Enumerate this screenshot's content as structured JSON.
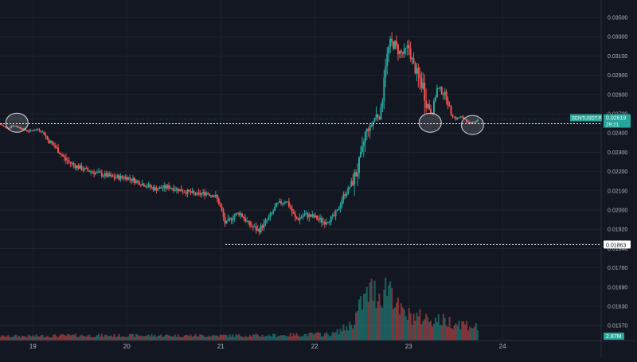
{
  "chart_data": {
    "type": "candlestick",
    "symbol": "SENTUSDT.P",
    "price_axis_ticks": [
      "0.03500",
      "0.03300",
      "0.03100",
      "0.02900",
      "0.02800",
      "0.02700",
      "0.02400",
      "0.02300",
      "0.02200",
      "0.02100",
      "0.02000",
      "0.01920",
      "0.01848",
      "0.01760",
      "0.01690",
      "0.01630",
      "0.01570"
    ],
    "x_ticks": [
      {
        "label": "19",
        "x": 19
      },
      {
        "label": "20",
        "x": 20
      },
      {
        "label": "21",
        "x": 21
      },
      {
        "label": "22",
        "x": 22
      },
      {
        "label": "23",
        "x": 23
      },
      {
        "label": "24",
        "x": 24
      }
    ],
    "x_range": [
      18.65,
      25.05
    ],
    "last_price": {
      "symbol": "SENTUSDT.P",
      "price": "0.02619",
      "countdown": "29:21",
      "value": 0.02619,
      "color": "#26a69a"
    },
    "levels": [
      {
        "label": "0.02545",
        "value": 0.02545,
        "style": "dotted",
        "from_x": 18.65
      },
      {
        "label": "0.01863",
        "value": 0.01863,
        "style": "dotted",
        "from_x": 21.05
      }
    ],
    "volume_badge": {
      "label": "2.87M"
    },
    "highlight_circles": [
      {
        "x": 18.83,
        "y": 0.0256
      },
      {
        "x": 23.23,
        "y": 0.0256
      },
      {
        "x": 23.68,
        "y": 0.02525
      }
    ],
    "price_path": [
      [
        18.65,
        0.0254
      ],
      [
        18.72,
        0.0247
      ],
      [
        18.78,
        0.0252
      ],
      [
        18.85,
        0.0249
      ],
      [
        18.95,
        0.0243
      ],
      [
        19.05,
        0.0246
      ],
      [
        19.1,
        0.0242
      ],
      [
        19.15,
        0.0237
      ],
      [
        19.25,
        0.0232
      ],
      [
        19.35,
        0.0226
      ],
      [
        19.45,
        0.0223
      ],
      [
        19.55,
        0.0221
      ],
      [
        19.7,
        0.0219
      ],
      [
        19.85,
        0.0217
      ],
      [
        20.0,
        0.0217
      ],
      [
        20.1,
        0.0215
      ],
      [
        20.2,
        0.0213
      ],
      [
        20.3,
        0.0211
      ],
      [
        20.45,
        0.0212
      ],
      [
        20.6,
        0.021
      ],
      [
        20.75,
        0.0208
      ],
      [
        20.85,
        0.0209
      ],
      [
        20.95,
        0.0207
      ],
      [
        21.0,
        0.0201
      ],
      [
        21.05,
        0.0194
      ],
      [
        21.12,
        0.0197
      ],
      [
        21.2,
        0.0199
      ],
      [
        21.3,
        0.0194
      ],
      [
        21.4,
        0.01915
      ],
      [
        21.5,
        0.0196
      ],
      [
        21.55,
        0.0199
      ],
      [
        21.6,
        0.0203
      ],
      [
        21.7,
        0.0205
      ],
      [
        21.75,
        0.02
      ],
      [
        21.8,
        0.0196
      ],
      [
        21.9,
        0.0198
      ],
      [
        22.0,
        0.0197
      ],
      [
        22.05,
        0.0196
      ],
      [
        22.1,
        0.0195
      ],
      [
        22.2,
        0.0197
      ],
      [
        22.25,
        0.02
      ],
      [
        22.3,
        0.0207
      ],
      [
        22.35,
        0.021
      ],
      [
        22.4,
        0.0215
      ],
      [
        22.45,
        0.022
      ],
      [
        22.5,
        0.0228
      ],
      [
        22.55,
        0.0244
      ],
      [
        22.6,
        0.025
      ],
      [
        22.65,
        0.0268
      ],
      [
        22.7,
        0.0265
      ],
      [
        22.75,
        0.03
      ],
      [
        22.8,
        0.0323
      ],
      [
        22.85,
        0.0322
      ],
      [
        22.9,
        0.0314
      ],
      [
        22.95,
        0.0312
      ],
      [
        23.0,
        0.032
      ],
      [
        23.05,
        0.03
      ],
      [
        23.1,
        0.029
      ],
      [
        23.15,
        0.0285
      ],
      [
        23.2,
        0.0275
      ],
      [
        23.25,
        0.027
      ],
      [
        23.3,
        0.0283
      ],
      [
        23.35,
        0.0282
      ],
      [
        23.4,
        0.0279
      ],
      [
        23.45,
        0.027
      ],
      [
        23.5,
        0.0262
      ],
      [
        23.55,
        0.0265
      ],
      [
        23.6,
        0.0262
      ],
      [
        23.65,
        0.0254
      ],
      [
        23.7,
        0.0258
      ],
      [
        23.75,
        0.0262
      ]
    ],
    "volume_profile": [
      [
        18.65,
        0.05
      ],
      [
        19.5,
        0.06
      ],
      [
        20.5,
        0.06
      ],
      [
        21.5,
        0.06
      ],
      [
        22.2,
        0.08
      ],
      [
        22.4,
        0.2
      ],
      [
        22.5,
        0.45
      ],
      [
        22.6,
        0.6
      ],
      [
        22.7,
        0.55
      ],
      [
        22.8,
        0.7
      ],
      [
        22.9,
        0.35
      ],
      [
        23.0,
        0.3
      ],
      [
        23.3,
        0.25
      ],
      [
        23.6,
        0.2
      ],
      [
        23.75,
        0.15
      ]
    ]
  }
}
